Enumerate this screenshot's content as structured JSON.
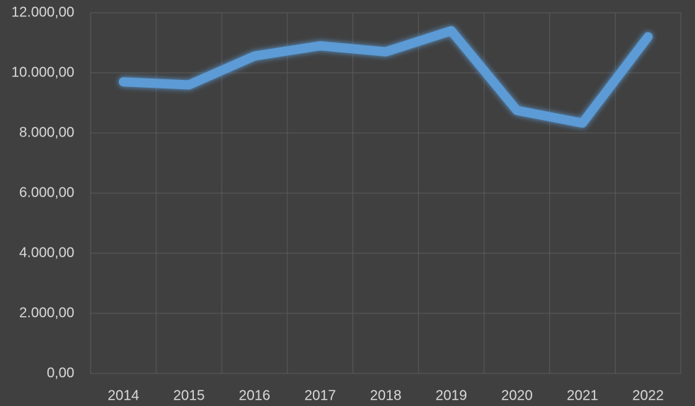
{
  "chart_data": {
    "type": "line",
    "categories": [
      "2014",
      "2015",
      "2016",
      "2017",
      "2018",
      "2019",
      "2020",
      "2021",
      "2022"
    ],
    "values": [
      9700,
      9600,
      10560,
      10900,
      10700,
      11400,
      8750,
      8330,
      11200
    ],
    "color": "#5b9bd5",
    "ylim": [
      0,
      12000
    ],
    "yticks": [
      {
        "value": 0,
        "label": "0,00"
      },
      {
        "value": 2000,
        "label": "2.000,00"
      },
      {
        "value": 4000,
        "label": "4.000,00"
      },
      {
        "value": 6000,
        "label": "6.000,00"
      },
      {
        "value": 8000,
        "label": "8.000,00"
      },
      {
        "value": 10000,
        "label": "10.000,00"
      },
      {
        "value": 12000,
        "label": "12.000,00"
      }
    ],
    "grid": true
  }
}
